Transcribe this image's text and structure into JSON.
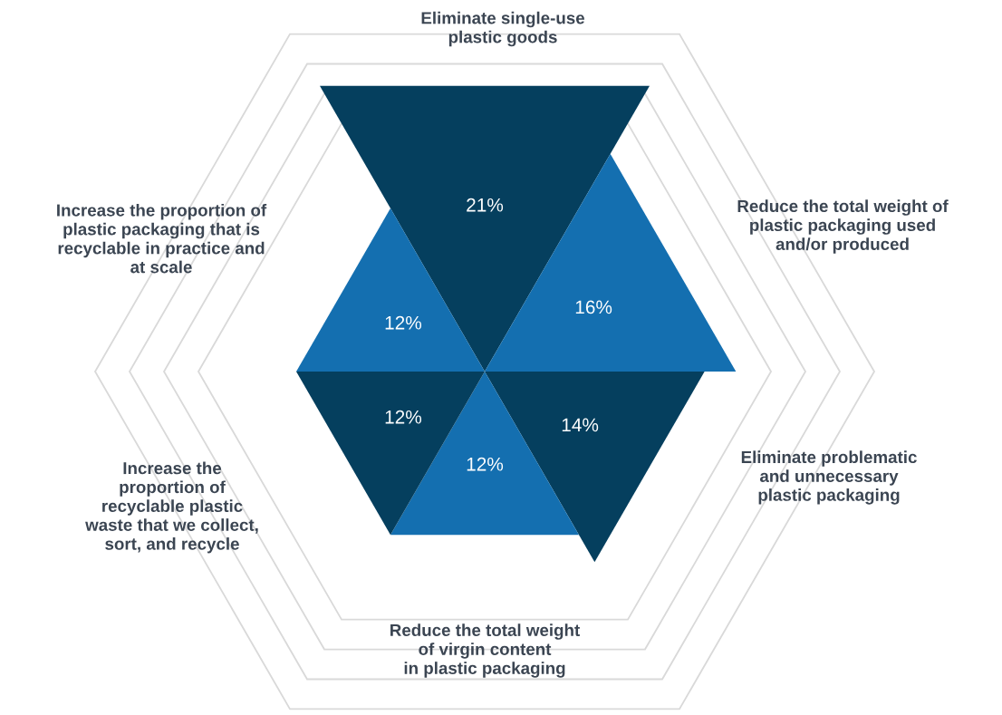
{
  "chart_data": {
    "type": "other",
    "categories": [
      "Eliminate single-use\nplastic goods",
      "Reduce the total weight of\nplastic packaging used\nand/or produced",
      "Eliminate problematic\nand unnecessary\nplastic packaging",
      "Reduce the total weight\nof virgin content\nin plastic packaging",
      "Increase the\nproportion of\nrecyclable plastic\nwaste that we collect,\nsort, and recycle",
      "Increase the proportion of\nplastic packaging that is\nrecyclable in practice and\nat scale"
    ],
    "values": [
      21,
      16,
      14,
      12,
      12,
      12
    ],
    "value_labels": [
      "21%",
      "16%",
      "14%",
      "12%",
      "12%",
      "12%"
    ],
    "colors": [
      "#053f5e",
      "#146fb0",
      "#053f5e",
      "#146fb0",
      "#053f5e",
      "#146fb0"
    ]
  }
}
